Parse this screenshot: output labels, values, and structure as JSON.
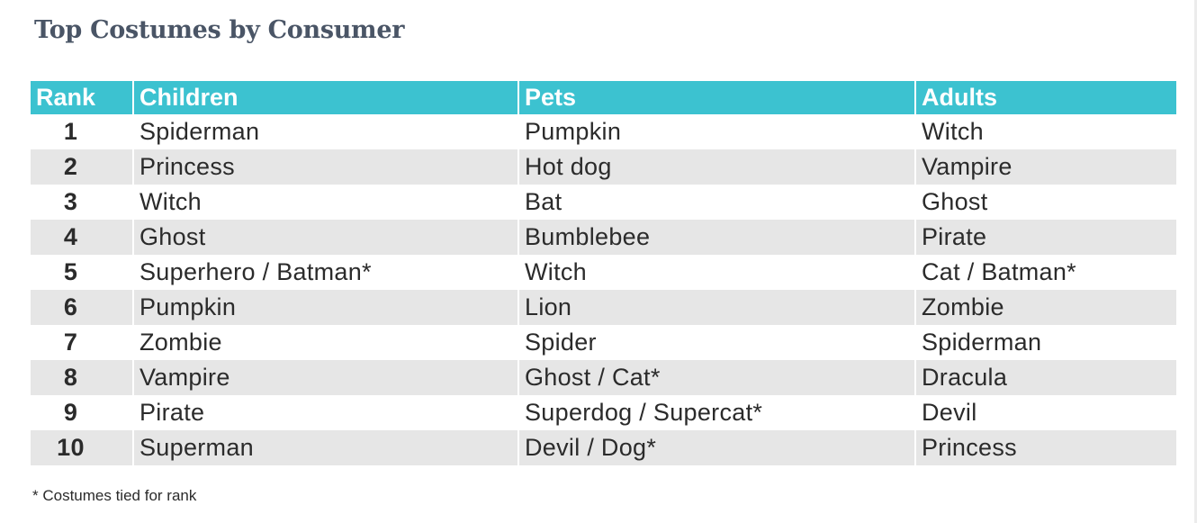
{
  "title": "Top Costumes by Consumer",
  "table": {
    "headers": [
      "Rank",
      "Children",
      "Pets",
      "Adults"
    ],
    "rows": [
      {
        "rank": "1",
        "children": "Spiderman",
        "pets": "Pumpkin",
        "adults": "Witch"
      },
      {
        "rank": "2",
        "children": "Princess",
        "pets": "Hot dog",
        "adults": "Vampire"
      },
      {
        "rank": "3",
        "children": "Witch",
        "pets": "Bat",
        "adults": "Ghost"
      },
      {
        "rank": "4",
        "children": "Ghost",
        "pets": "Bumblebee",
        "adults": "Pirate"
      },
      {
        "rank": "5",
        "children": "Superhero / Batman*",
        "pets": "Witch",
        "adults": "Cat / Batman*"
      },
      {
        "rank": "6",
        "children": "Pumpkin",
        "pets": "Lion",
        "adults": "Zombie"
      },
      {
        "rank": "7",
        "children": "Zombie",
        "pets": "Spider",
        "adults": "Spiderman"
      },
      {
        "rank": "8",
        "children": "Vampire",
        "pets": "Ghost / Cat*",
        "adults": "Dracula"
      },
      {
        "rank": "9",
        "children": "Pirate",
        "pets": "Superdog / Supercat*",
        "adults": "Devil"
      },
      {
        "rank": "10",
        "children": "Superman",
        "pets": "Devil / Dog*",
        "adults": "Princess"
      }
    ]
  },
  "footnote": "* Costumes tied for rank",
  "colors": {
    "header_bg": "#3cc2d0",
    "stripe_bg": "#e6e6e6",
    "title_color": "#4a5566"
  }
}
